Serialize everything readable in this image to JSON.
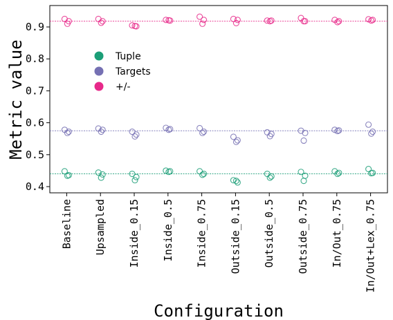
{
  "chart_data": {
    "type": "scatter",
    "xlabel": "Configuration",
    "ylabel": "Metric value",
    "ylim": [
      0.385,
      0.975
    ],
    "yticks": [
      "0.4",
      "0.5",
      "0.6",
      "0.7",
      "0.8",
      "0.9"
    ],
    "categories": [
      "Baseline",
      "Upsampled",
      "Inside_0.15",
      "Inside_0.5",
      "Inside_0.75",
      "Outside_0.15",
      "Outside_0.5",
      "Outside_0.75",
      "In/Out_0.75",
      "In/Out+Lex_0.75"
    ],
    "legend_position": "upper-left",
    "series": [
      {
        "name": "Tuple",
        "color": "#1b9e77",
        "reference_line": 0.44,
        "values": [
          [
            0.448,
            0.436,
            0.434
          ],
          [
            0.444,
            0.438,
            0.428
          ],
          [
            0.44,
            0.43,
            0.42
          ],
          [
            0.45,
            0.448,
            0.446
          ],
          [
            0.448,
            0.44,
            0.437
          ],
          [
            0.42,
            0.413,
            0.418
          ],
          [
            0.44,
            0.432,
            0.428
          ],
          [
            0.446,
            0.434,
            0.418
          ],
          [
            0.448,
            0.443,
            0.44
          ],
          [
            0.455,
            0.443,
            0.442
          ]
        ]
      },
      {
        "name": "Targets",
        "color": "#7570b3",
        "reference_line": 0.575,
        "values": [
          [
            0.578,
            0.572,
            0.568
          ],
          [
            0.582,
            0.578,
            0.572
          ],
          [
            0.572,
            0.563,
            0.557
          ],
          [
            0.584,
            0.58,
            0.578
          ],
          [
            0.583,
            0.572,
            0.568
          ],
          [
            0.556,
            0.545,
            0.54
          ],
          [
            0.57,
            0.565,
            0.558
          ],
          [
            0.575,
            0.568,
            0.544
          ],
          [
            0.578,
            0.576,
            0.574
          ],
          [
            0.594,
            0.572,
            0.566
          ]
        ]
      },
      {
        "name": "+/-",
        "color": "#e7298a",
        "reference_line": 0.918,
        "values": [
          [
            0.925,
            0.918,
            0.91
          ],
          [
            0.925,
            0.918,
            0.913
          ],
          [
            0.905,
            0.902,
            0.903
          ],
          [
            0.922,
            0.92,
            0.921
          ],
          [
            0.932,
            0.922,
            0.91
          ],
          [
            0.925,
            0.922,
            0.912
          ],
          [
            0.92,
            0.92,
            0.918
          ],
          [
            0.928,
            0.918,
            0.918
          ],
          [
            0.922,
            0.918,
            0.915
          ],
          [
            0.924,
            0.922,
            0.92
          ]
        ]
      }
    ]
  }
}
